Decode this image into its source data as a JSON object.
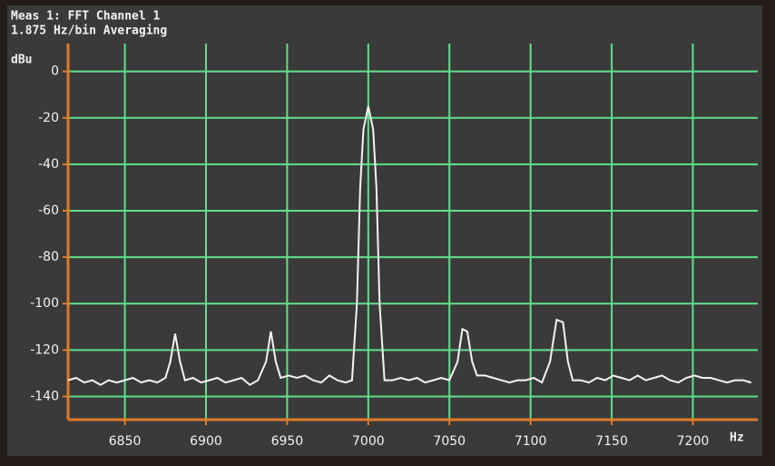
{
  "chart_data": {
    "type": "line",
    "title": "Meas 1: FFT Channel 1",
    "subtitle": "1.875 Hz/bin  Averaging",
    "y_label": "dBu",
    "x_label": "Hz",
    "x": [
      6815,
      6820,
      6825,
      6830,
      6835,
      6840,
      6845,
      6850,
      6855,
      6860,
      6865,
      6870,
      6875,
      6878,
      6881,
      6884,
      6887,
      6892,
      6897,
      6902,
      6907,
      6912,
      6917,
      6922,
      6927,
      6932,
      6937,
      6940,
      6943,
      6946,
      6951,
      6956,
      6961,
      6966,
      6971,
      6976,
      6981,
      6986,
      6990,
      6993,
      6995,
      6997,
      7000,
      7003,
      7005,
      7007,
      7010,
      7015,
      7020,
      7025,
      7030,
      7035,
      7040,
      7045,
      7050,
      7055,
      7058,
      7061,
      7064,
      7067,
      7072,
      7077,
      7082,
      7087,
      7092,
      7097,
      7102,
      7107,
      7112,
      7116,
      7120,
      7123,
      7126,
      7131,
      7136,
      7141,
      7146,
      7151,
      7156,
      7161,
      7166,
      7171,
      7176,
      7181,
      7186,
      7191,
      7196,
      7201,
      7206,
      7211,
      7216,
      7221,
      7226,
      7231,
      7236
    ],
    "series": [
      {
        "color": "#f4f4f0",
        "values": [
          -133,
          -132,
          -134,
          -133,
          -135,
          -133,
          -134,
          -133,
          -132,
          -134,
          -133,
          -134,
          -132,
          -125,
          -113,
          -125,
          -133,
          -132,
          -134,
          -133,
          -132,
          -134,
          -133,
          -132,
          -135,
          -133,
          -125,
          -112,
          -125,
          -132,
          -131,
          -132,
          -131,
          -133,
          -134,
          -131,
          -133,
          -134,
          -133,
          -100,
          -50,
          -25,
          -15,
          -25,
          -50,
          -100,
          -133,
          -133,
          -132,
          -133,
          -132,
          -134,
          -133,
          -132,
          -133,
          -125,
          -111,
          -112,
          -125,
          -131,
          -131,
          -132,
          -133,
          -134,
          -133,
          -133,
          -132,
          -134,
          -125,
          -107,
          -108,
          -125,
          -133,
          -133,
          -134,
          -132,
          -133,
          -131,
          -132,
          -133,
          -131,
          -133,
          -132,
          -131,
          -133,
          -134,
          -132,
          -131,
          -132,
          -132,
          -133,
          -134,
          -133,
          -133,
          -134
        ]
      }
    ],
    "xlim": [
      6815,
      7240
    ],
    "xticks": [
      6850,
      6900,
      6950,
      7000,
      7050,
      7100,
      7150,
      7200
    ],
    "ylim": [
      -150,
      12
    ],
    "yticks": [
      -140,
      -120,
      -100,
      -80,
      -60,
      -40,
      -20,
      0
    ],
    "grid": true,
    "grid_color": "#5fe08a",
    "axis_color": "#e07a2a"
  }
}
